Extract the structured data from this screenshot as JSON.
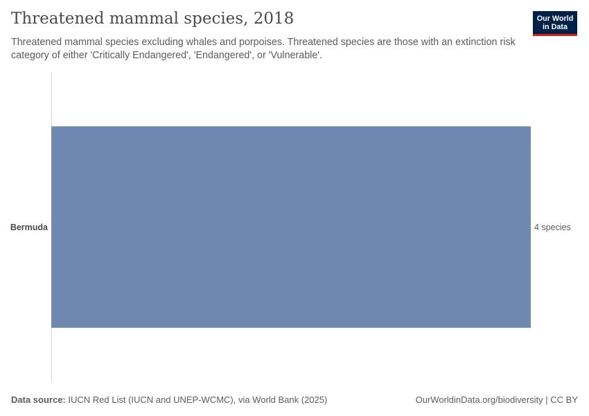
{
  "header": {
    "title": "Threatened mammal species, 2018",
    "subtitle": "Threatened mammal species excluding whales and porpoises. Threatened species are those with an extinction risk category of either 'Critically Endangered', 'Endangered', or 'Vulnerable'."
  },
  "logo": {
    "line1": "Our World",
    "line2": "in Data",
    "bg_color": "#002147",
    "accent_color": "#ce261e"
  },
  "chart_data": {
    "type": "bar",
    "orientation": "horizontal",
    "title": "Threatened mammal species, 2018",
    "categories": [
      "Bermuda"
    ],
    "values": [
      4
    ],
    "value_labels": [
      "4 species"
    ],
    "unit": "species",
    "xlim": [
      0,
      4
    ],
    "grid": false,
    "bar_color": "#6f88b0"
  },
  "footer": {
    "source_label": "Data source:",
    "source_text": "IUCN Red List (IUCN and UNEP-WCMC), via World Bank (2025)",
    "right_text": "OurWorldinData.org/biodiversity | CC BY"
  }
}
